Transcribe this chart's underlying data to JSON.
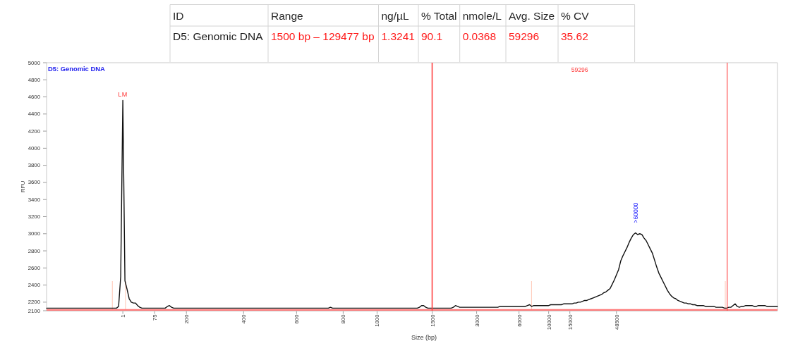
{
  "chart_data": [
    {
      "type": "other",
      "categories": [
        "ID",
        "Range",
        "ng/µL",
        "% Total",
        "nmole/L",
        "Avg. Size",
        "% CV"
      ],
      "cell_labels": [
        [
          "D5: Genomic DNA",
          "1500 bp – 129477 bp",
          "1.3241",
          "90.1",
          "0.0368",
          "59296",
          "35.62"
        ]
      ],
      "colors": [
        "#1a1a1a",
        "#ff1a1a",
        "#ff1a1a",
        "#ff1a1a",
        "#ff1a1a",
        "#ff1a1a",
        "#ff1a1a"
      ]
    },
    {
      "type": "line",
      "title": "D5: Genomic DNA",
      "xlabel": "Size (bp)",
      "ylabel": "RFU",
      "categories": [
        null,
        null,
        null,
        null,
        null,
        null,
        null,
        null,
        null,
        null,
        null,
        null,
        null,
        null,
        null,
        null,
        null,
        null,
        null,
        null,
        null,
        null,
        null,
        null,
        null,
        null,
        null,
        null,
        null,
        null,
        null,
        null,
        null,
        null,
        null,
        null,
        "1",
        null,
        null,
        null,
        null,
        null,
        null,
        null,
        null,
        null,
        null,
        null,
        null,
        null,
        null,
        "75",
        null,
        null,
        null,
        null,
        null,
        null,
        null,
        null,
        null,
        null,
        null,
        null,
        null,
        null,
        "200",
        null,
        null,
        null,
        null,
        null,
        null,
        null,
        null,
        null,
        null,
        null,
        null,
        null,
        null,
        null,
        null,
        null,
        null,
        null,
        null,
        null,
        null,
        null,
        null,
        null,
        null,
        "400",
        null,
        null,
        null,
        null,
        null,
        null,
        null,
        null,
        null,
        null,
        null,
        null,
        null,
        null,
        null,
        null,
        null,
        null,
        null,
        null,
        null,
        null,
        null,
        null,
        "600",
        null,
        null,
        null,
        null,
        null,
        null,
        null,
        null,
        null,
        null,
        null,
        null,
        null,
        null,
        null,
        null,
        null,
        null,
        null,
        null,
        null,
        "800",
        null,
        null,
        null,
        null,
        null,
        null,
        null,
        null,
        null,
        null,
        null,
        null,
        null,
        null,
        null,
        "1000",
        null,
        null,
        null,
        null,
        null,
        null,
        null,
        null,
        null,
        null,
        null,
        null,
        null,
        null,
        null,
        null,
        null,
        null,
        null,
        null,
        null,
        null,
        null,
        null,
        null,
        "1500",
        null,
        null,
        null,
        null,
        null,
        null,
        null,
        null,
        null,
        null,
        null,
        null,
        null,
        null,
        null,
        null,
        null,
        null,
        null,
        null,
        "3000",
        null,
        null,
        null,
        null,
        null,
        null,
        null,
        null,
        null,
        null,
        null,
        null,
        null,
        null,
        null,
        null,
        null,
        null,
        null,
        "6000",
        null,
        null,
        null,
        null,
        null,
        null,
        null,
        null,
        null,
        null,
        null,
        null,
        null,
        "10000",
        null,
        null,
        null,
        null,
        null,
        null,
        null,
        null,
        null,
        "15000",
        null,
        null,
        null,
        null,
        null,
        null,
        null,
        null,
        null,
        null,
        null,
        null,
        null,
        null,
        null,
        null,
        null,
        null,
        null,
        null,
        null,
        "48500",
        null,
        null,
        null,
        null,
        null,
        null,
        null,
        null,
        null,
        null,
        null,
        null,
        null,
        null,
        null,
        null,
        null,
        null,
        null,
        null,
        null,
        null,
        null,
        null,
        null,
        null,
        null,
        null,
        null,
        null,
        null,
        null,
        null,
        null,
        null,
        null,
        null,
        null,
        null,
        null,
        null,
        null,
        null,
        null,
        null,
        null,
        null,
        null,
        null,
        null,
        null,
        null,
        null,
        null,
        null,
        null,
        null,
        null,
        null,
        null,
        null,
        null,
        null,
        null,
        null,
        null,
        null,
        null,
        null,
        null,
        null,
        null,
        null,
        null,
        null,
        null
      ],
      "ylim": [
        2100,
        5000
      ],
      "yticks": [
        2100,
        2200,
        2400,
        2600,
        2800,
        3000,
        3200,
        3400,
        3600,
        3800,
        4000,
        4200,
        4400,
        4600,
        4800,
        5000
      ],
      "series": [
        {
          "color": "#111111",
          "values": [
            2130,
            2130,
            2130,
            2130,
            2130,
            2130,
            2130,
            2130,
            2130,
            2130,
            2130,
            2130,
            2130,
            2130,
            2130,
            2130,
            2130,
            2130,
            2130,
            2130,
            2130,
            2130,
            2130,
            2130,
            2130,
            2130,
            2130,
            2130,
            2130,
            2130,
            2130,
            2130,
            2130,
            2130,
            2150,
            2500,
            4560,
            2450,
            2350,
            2240,
            2200,
            2190,
            2190,
            2160,
            2140,
            2130,
            2130,
            2130,
            2130,
            2130,
            2130,
            2130,
            2130,
            2130,
            2130,
            2130,
            2130,
            2150,
            2160,
            2140,
            2130,
            2130,
            2130,
            2130,
            2130,
            2130,
            2130,
            2130,
            2130,
            2130,
            2130,
            2130,
            2130,
            2130,
            2130,
            2130,
            2130,
            2130,
            2130,
            2130,
            2130,
            2130,
            2130,
            2130,
            2130,
            2130,
            2130,
            2130,
            2130,
            2130,
            2130,
            2130,
            2130,
            2130,
            2130,
            2130,
            2130,
            2130,
            2130,
            2130,
            2130,
            2130,
            2130,
            2130,
            2130,
            2130,
            2130,
            2130,
            2130,
            2130,
            2130,
            2130,
            2130,
            2130,
            2130,
            2130,
            2130,
            2130,
            2130,
            2130,
            2130,
            2130,
            2130,
            2130,
            2130,
            2130,
            2130,
            2130,
            2130,
            2130,
            2130,
            2130,
            2130,
            2130,
            2140,
            2130,
            2130,
            2130,
            2130,
            2130,
            2130,
            2130,
            2130,
            2130,
            2130,
            2130,
            2130,
            2130,
            2130,
            2130,
            2130,
            2130,
            2130,
            2130,
            2130,
            2130,
            2130,
            2130,
            2130,
            2130,
            2130,
            2130,
            2130,
            2130,
            2130,
            2130,
            2130,
            2130,
            2130,
            2130,
            2130,
            2130,
            2130,
            2130,
            2130,
            2130,
            2140,
            2160,
            2160,
            2140,
            2130,
            2130,
            2130,
            2130,
            2130,
            2130,
            2130,
            2130,
            2130,
            2130,
            2130,
            2130,
            2140,
            2160,
            2150,
            2140,
            2140,
            2140,
            2140,
            2140,
            2140,
            2140,
            2140,
            2140,
            2140,
            2140,
            2140,
            2140,
            2140,
            2140,
            2140,
            2140,
            2140,
            2140,
            2150,
            2150,
            2150,
            2150,
            2150,
            2150,
            2150,
            2150,
            2150,
            2150,
            2150,
            2150,
            2150,
            2160,
            2170,
            2150,
            2160,
            2160,
            2160,
            2160,
            2160,
            2160,
            2160,
            2160,
            2170,
            2170,
            2170,
            2170,
            2170,
            2170,
            2180,
            2180,
            2180,
            2180,
            2180,
            2190,
            2190,
            2200,
            2200,
            2210,
            2220,
            2220,
            2230,
            2240,
            2250,
            2260,
            2270,
            2280,
            2290,
            2310,
            2320,
            2340,
            2360,
            2410,
            2460,
            2520,
            2580,
            2680,
            2740,
            2790,
            2840,
            2900,
            2950,
            2990,
            3010,
            2990,
            3000,
            2990,
            2950,
            2920,
            2870,
            2820,
            2770,
            2690,
            2610,
            2540,
            2490,
            2440,
            2390,
            2340,
            2300,
            2270,
            2250,
            2240,
            2220,
            2210,
            2200,
            2190,
            2190,
            2180,
            2180,
            2170,
            2170,
            2160,
            2160,
            2160,
            2160,
            2150,
            2150,
            2150,
            2150,
            2150,
            2140,
            2140,
            2140,
            2140,
            2130,
            2130,
            2140,
            2140,
            2160,
            2180,
            2150,
            2140,
            2150,
            2150,
            2160,
            2160,
            2160,
            2160,
            2150,
            2150,
            2160,
            2160,
            2160,
            2160,
            2150,
            2150,
            2150,
            2150,
            2150,
            2150
          ],
          "value_labels": [
            null,
            null,
            null,
            null,
            null,
            null,
            null,
            null,
            null,
            null,
            null,
            null,
            null,
            null,
            null,
            null,
            null,
            null,
            null,
            null,
            null,
            null,
            null,
            null,
            null,
            null,
            null,
            null,
            null,
            null,
            null,
            null,
            null,
            null,
            null,
            null,
            null,
            null,
            null,
            null,
            null,
            null,
            null,
            null,
            null,
            null,
            null,
            null,
            null,
            null,
            null,
            null,
            null,
            null,
            null,
            null,
            null,
            null,
            null,
            null,
            null,
            null,
            null,
            null,
            null,
            null,
            null,
            null,
            null,
            null,
            null,
            null,
            null,
            null,
            null,
            null,
            null,
            null,
            null,
            null,
            null,
            null,
            null,
            null,
            null,
            null,
            null,
            null,
            null,
            null,
            null,
            null,
            null,
            null,
            null,
            null,
            null,
            null,
            null,
            null,
            null,
            null,
            null,
            null,
            null,
            null,
            null,
            null,
            null,
            null,
            null,
            null,
            null,
            null,
            null,
            null,
            null,
            null,
            null,
            null,
            null,
            null,
            null,
            null,
            null,
            null,
            null,
            null,
            null,
            null,
            null,
            null,
            null,
            null,
            null,
            null,
            null,
            null,
            null,
            null,
            null,
            null,
            null,
            null,
            null,
            null,
            null,
            null,
            null,
            null,
            null,
            null,
            null,
            null,
            null,
            null,
            null,
            null,
            null,
            null,
            null,
            null,
            null,
            null,
            null,
            null,
            null,
            null,
            null,
            null,
            null,
            null,
            null,
            null,
            null,
            null,
            null,
            null,
            null,
            null,
            null,
            null,
            null,
            null,
            null,
            null,
            null,
            null,
            null,
            null,
            null,
            null,
            null,
            null,
            null,
            null,
            null,
            null,
            null,
            null,
            null,
            null,
            null,
            null,
            null,
            null,
            null,
            null,
            null,
            null,
            null,
            null,
            null,
            null,
            null,
            null,
            null,
            null,
            null,
            null,
            null,
            null,
            null,
            null,
            null,
            null,
            null,
            null,
            null,
            null,
            null,
            null,
            null,
            null,
            null,
            null,
            null,
            null,
            null,
            null,
            null,
            null,
            null,
            null,
            null,
            null,
            null,
            null,
            null,
            null,
            null,
            null,
            null,
            null,
            null,
            null,
            null,
            null,
            null,
            null,
            null,
            null,
            null,
            null,
            null,
            null,
            null,
            null,
            null,
            null,
            null,
            null,
            null,
            null,
            null,
            null,
            null,
            null,
            ">60000",
            null,
            null,
            null,
            null,
            null,
            null,
            null,
            null,
            null,
            null,
            null,
            null,
            null,
            null,
            null,
            null,
            null,
            null,
            null,
            null,
            null,
            null,
            null,
            null,
            null,
            null,
            null,
            null,
            null,
            null,
            null,
            null,
            null,
            null,
            null,
            null,
            null,
            null,
            null,
            null,
            null,
            null,
            null,
            null,
            null,
            null,
            null,
            null,
            null,
            null,
            null,
            null,
            null,
            null,
            null,
            null,
            null,
            null,
            null,
            null,
            null,
            null,
            null,
            null,
            null,
            null,
            null
          ]
        }
      ],
      "ref_lines": [
        {
          "axis": "y",
          "value": 2110,
          "color": "#ff7a7a"
        },
        {
          "axis": "x",
          "value": "1500",
          "color": "#ff4040"
        }
      ],
      "annotations": [
        {
          "text": "LM",
          "x": "1",
          "y": 4560
        },
        "59296"
      ]
    }
  ]
}
